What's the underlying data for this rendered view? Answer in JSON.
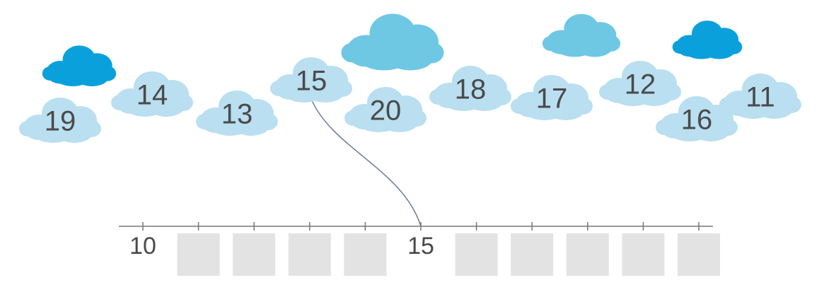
{
  "nodes": [
    {
      "label": "19"
    },
    {
      "label": "14"
    },
    {
      "label": "13"
    },
    {
      "label": "15"
    },
    {
      "label": "20"
    },
    {
      "label": "18"
    },
    {
      "label": "17"
    },
    {
      "label": "12"
    },
    {
      "label": "16"
    },
    {
      "label": "11"
    }
  ],
  "number_line": {
    "labels": [
      "10",
      "15"
    ]
  }
}
